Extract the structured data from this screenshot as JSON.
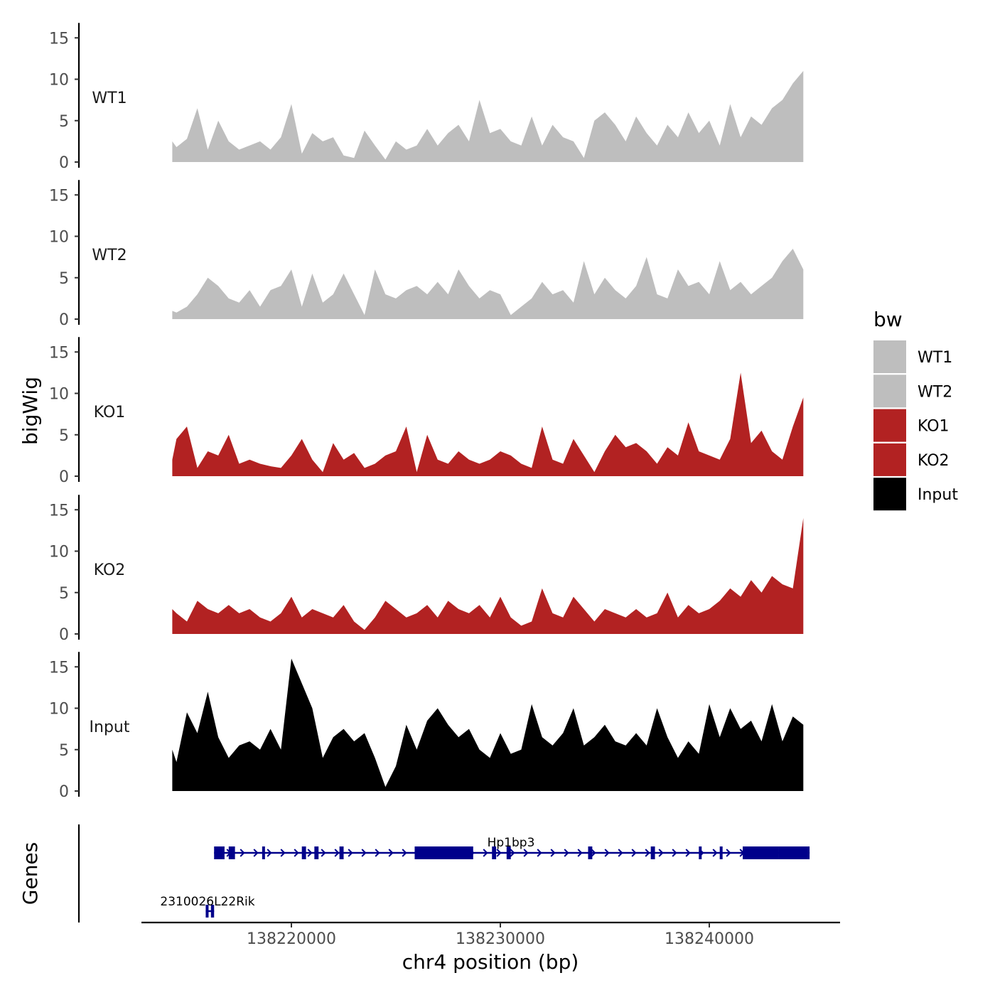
{
  "chart_data": {
    "type": "area",
    "title": "",
    "xlabel": "chr4 position (bp)",
    "ylabel": "bigWig",
    "gene_panel_label": "Genes",
    "xlim": [
      138213000,
      138246500
    ],
    "ylim": [
      0,
      16
    ],
    "x_ticks": [
      138220000,
      138230000,
      138240000
    ],
    "x_tick_labels": [
      "138220000",
      "138230000",
      "138240000"
    ],
    "y_ticks": [
      0,
      5,
      10,
      15
    ],
    "y_tick_labels": [
      "0",
      "5",
      "10",
      "15"
    ],
    "legend": {
      "title": "bw",
      "placement": "right",
      "entries": [
        {
          "label": "WT1",
          "color": "#bebebe"
        },
        {
          "label": "WT2",
          "color": "#bebebe"
        },
        {
          "label": "KO1",
          "color": "#b22222"
        },
        {
          "label": "KO2",
          "color": "#b22222"
        },
        {
          "label": "Input",
          "color": "#000000"
        }
      ]
    },
    "series": [
      {
        "name": "WT1",
        "color": "#bebebe",
        "x": [
          138214300,
          138214500,
          138215000,
          138215500,
          138216000,
          138216500,
          138217000,
          138217500,
          138218000,
          138218500,
          138219000,
          138219500,
          138220000,
          138220500,
          138221000,
          138221500,
          138222000,
          138222500,
          138223000,
          138223500,
          138224000,
          138224500,
          138225000,
          138225500,
          138226000,
          138226500,
          138227000,
          138227500,
          138228000,
          138228500,
          138229000,
          138229500,
          138230000,
          138230500,
          138231000,
          138231500,
          138232000,
          138232500,
          138233000,
          138233500,
          138234000,
          138234500,
          138235000,
          138235500,
          138236000,
          138236500,
          138237000,
          138237500,
          138238000,
          138238500,
          138239000,
          138239500,
          138240000,
          138240500,
          138241000,
          138241500,
          138242000,
          138242500,
          138243000,
          138243500,
          138244000,
          138244500
        ],
        "values": [
          2.5,
          1.8,
          2.8,
          6.5,
          1.5,
          5.0,
          2.5,
          1.5,
          2.0,
          2.5,
          1.5,
          3.0,
          7.0,
          1.0,
          3.5,
          2.5,
          3.0,
          0.8,
          0.5,
          3.8,
          2.0,
          0.3,
          2.5,
          1.5,
          2.0,
          4.0,
          2.0,
          3.5,
          4.5,
          2.5,
          7.5,
          3.5,
          4.0,
          2.5,
          2.0,
          5.5,
          2.0,
          4.5,
          3.0,
          2.5,
          0.5,
          5.0,
          6.0,
          4.5,
          2.5,
          5.5,
          3.5,
          2.0,
          4.5,
          3.0,
          6.0,
          3.5,
          5.0,
          2.0,
          7.0,
          3.0,
          5.5,
          4.5,
          6.5,
          7.5,
          9.5,
          11.0
        ]
      },
      {
        "name": "WT2",
        "color": "#bebebe",
        "x": [
          138214300,
          138214500,
          138215000,
          138215500,
          138216000,
          138216500,
          138217000,
          138217500,
          138218000,
          138218500,
          138219000,
          138219500,
          138220000,
          138220500,
          138221000,
          138221500,
          138222000,
          138222500,
          138223000,
          138223500,
          138224000,
          138224500,
          138225000,
          138225500,
          138226000,
          138226500,
          138227000,
          138227500,
          138228000,
          138228500,
          138229000,
          138229500,
          138230000,
          138230500,
          138231000,
          138231500,
          138232000,
          138232500,
          138233000,
          138233500,
          138234000,
          138234500,
          138235000,
          138235500,
          138236000,
          138236500,
          138237000,
          138237500,
          138238000,
          138238500,
          138239000,
          138239500,
          138240000,
          138240500,
          138241000,
          138241500,
          138242000,
          138242500,
          138243000,
          138243500,
          138244000,
          138244500
        ],
        "values": [
          1.0,
          0.8,
          1.5,
          3.0,
          5.0,
          4.0,
          2.5,
          2.0,
          3.5,
          1.5,
          3.5,
          4.0,
          6.0,
          1.5,
          5.5,
          2.0,
          3.0,
          5.5,
          3.0,
          0.5,
          6.0,
          3.0,
          2.5,
          3.5,
          4.0,
          3.0,
          4.5,
          3.0,
          6.0,
          4.0,
          2.5,
          3.5,
          3.0,
          0.5,
          1.5,
          2.5,
          4.5,
          3.0,
          3.5,
          2.0,
          7.0,
          3.0,
          5.0,
          3.5,
          2.5,
          4.0,
          7.5,
          3.0,
          2.5,
          6.0,
          4.0,
          4.5,
          3.0,
          7.0,
          3.5,
          4.5,
          3.0,
          4.0,
          5.0,
          7.0,
          8.5,
          6.0
        ]
      },
      {
        "name": "KO1",
        "color": "#b22222",
        "x": [
          138214300,
          138214500,
          138215000,
          138215500,
          138216000,
          138216500,
          138217000,
          138217500,
          138218000,
          138218500,
          138219000,
          138219500,
          138220000,
          138220500,
          138221000,
          138221500,
          138222000,
          138222500,
          138223000,
          138223500,
          138224000,
          138224500,
          138225000,
          138225500,
          138226000,
          138226500,
          138227000,
          138227500,
          138228000,
          138228500,
          138229000,
          138229500,
          138230000,
          138230500,
          138231000,
          138231500,
          138232000,
          138232500,
          138233000,
          138233500,
          138234000,
          138234500,
          138235000,
          138235500,
          138236000,
          138236500,
          138237000,
          138237500,
          138238000,
          138238500,
          138239000,
          138239500,
          138240000,
          138240500,
          138241000,
          138241500,
          138242000,
          138242500,
          138243000,
          138243500,
          138244000,
          138244500
        ],
        "values": [
          2.0,
          4.5,
          6.0,
          1.0,
          3.0,
          2.5,
          5.0,
          1.5,
          2.0,
          1.5,
          1.2,
          1.0,
          2.5,
          4.5,
          2.0,
          0.5,
          4.0,
          2.0,
          2.8,
          1.0,
          1.5,
          2.5,
          3.0,
          6.0,
          0.5,
          5.0,
          2.0,
          1.5,
          3.0,
          2.0,
          1.5,
          2.0,
          3.0,
          2.5,
          1.5,
          1.0,
          6.0,
          2.0,
          1.5,
          4.5,
          2.5,
          0.5,
          3.0,
          5.0,
          3.5,
          4.0,
          3.0,
          1.5,
          3.5,
          2.5,
          6.5,
          3.0,
          2.5,
          2.0,
          4.5,
          12.5,
          4.0,
          5.5,
          3.0,
          2.0,
          6.0,
          9.5
        ]
      },
      {
        "name": "KO2",
        "color": "#b22222",
        "x": [
          138214300,
          138214500,
          138215000,
          138215500,
          138216000,
          138216500,
          138217000,
          138217500,
          138218000,
          138218500,
          138219000,
          138219500,
          138220000,
          138220500,
          138221000,
          138221500,
          138222000,
          138222500,
          138223000,
          138223500,
          138224000,
          138224500,
          138225000,
          138225500,
          138226000,
          138226500,
          138227000,
          138227500,
          138228000,
          138228500,
          138229000,
          138229500,
          138230000,
          138230500,
          138231000,
          138231500,
          138232000,
          138232500,
          138233000,
          138233500,
          138234000,
          138234500,
          138235000,
          138235500,
          138236000,
          138236500,
          138237000,
          138237500,
          138238000,
          138238500,
          138239000,
          138239500,
          138240000,
          138240500,
          138241000,
          138241500,
          138242000,
          138242500,
          138243000,
          138243500,
          138244000,
          138244500
        ],
        "values": [
          3.0,
          2.5,
          1.5,
          4.0,
          3.0,
          2.5,
          3.5,
          2.5,
          3.0,
          2.0,
          1.5,
          2.5,
          4.5,
          2.0,
          3.0,
          2.5,
          2.0,
          3.5,
          1.5,
          0.5,
          2.0,
          4.0,
          3.0,
          2.0,
          2.5,
          3.5,
          2.0,
          4.0,
          3.0,
          2.5,
          3.5,
          2.0,
          4.5,
          2.0,
          1.0,
          1.5,
          5.5,
          2.5,
          2.0,
          4.5,
          3.0,
          1.5,
          3.0,
          2.5,
          2.0,
          3.0,
          2.0,
          2.5,
          5.0,
          2.0,
          3.5,
          2.5,
          3.0,
          4.0,
          5.5,
          4.5,
          6.5,
          5.0,
          7.0,
          6.0,
          5.5,
          14.0
        ]
      },
      {
        "name": "Input",
        "color": "#000000",
        "x": [
          138214300,
          138214500,
          138215000,
          138215500,
          138216000,
          138216500,
          138217000,
          138217500,
          138218000,
          138218500,
          138219000,
          138219500,
          138220000,
          138220500,
          138221000,
          138221500,
          138222000,
          138222500,
          138223000,
          138223500,
          138224000,
          138224500,
          138225000,
          138225500,
          138226000,
          138226500,
          138227000,
          138227500,
          138228000,
          138228500,
          138229000,
          138229500,
          138230000,
          138230500,
          138231000,
          138231500,
          138232000,
          138232500,
          138233000,
          138233500,
          138234000,
          138234500,
          138235000,
          138235500,
          138236000,
          138236500,
          138237000,
          138237500,
          138238000,
          138238500,
          138239000,
          138239500,
          138240000,
          138240500,
          138241000,
          138241500,
          138242000,
          138242500,
          138243000,
          138243500,
          138244000,
          138244500
        ],
        "values": [
          5.0,
          3.5,
          9.5,
          7.0,
          12.0,
          6.5,
          4.0,
          5.5,
          6.0,
          5.0,
          7.5,
          5.0,
          16.0,
          13.0,
          10.0,
          4.0,
          6.5,
          7.5,
          6.0,
          7.0,
          4.0,
          0.5,
          3.0,
          8.0,
          5.0,
          8.5,
          10.0,
          8.0,
          6.5,
          7.5,
          5.0,
          4.0,
          7.0,
          4.5,
          5.0,
          10.5,
          6.5,
          5.5,
          7.0,
          10.0,
          5.5,
          6.5,
          8.0,
          6.0,
          5.5,
          7.0,
          5.5,
          10.0,
          6.5,
          4.0,
          6.0,
          4.5,
          10.5,
          6.5,
          10.0,
          7.5,
          8.5,
          6.0,
          10.5,
          6.0,
          9.0,
          8.0
        ]
      }
    ],
    "genes": [
      {
        "name": "Hp1bp3",
        "strand": "+",
        "start": 138216300,
        "end": 138244800,
        "exons": [
          [
            138216300,
            138216800
          ],
          [
            138217000,
            138217300
          ],
          [
            138218600,
            138218700
          ],
          [
            138220500,
            138220700
          ],
          [
            138221100,
            138221300
          ],
          [
            138222300,
            138222500
          ],
          [
            138225900,
            138228700
          ],
          [
            138229600,
            138229800
          ],
          [
            138230300,
            138230500
          ],
          [
            138234200,
            138234400
          ],
          [
            138237200,
            138237400
          ],
          [
            138239500,
            138239600
          ],
          [
            138240500,
            138240600
          ],
          [
            138241600,
            138243300
          ],
          [
            138243300,
            138244800
          ]
        ]
      },
      {
        "name": "2310026L22Rik",
        "strand": "+",
        "start": 138215900,
        "end": 138216300,
        "exons": [
          [
            138215900,
            138216000
          ],
          [
            138216150,
            138216300
          ]
        ]
      }
    ]
  }
}
